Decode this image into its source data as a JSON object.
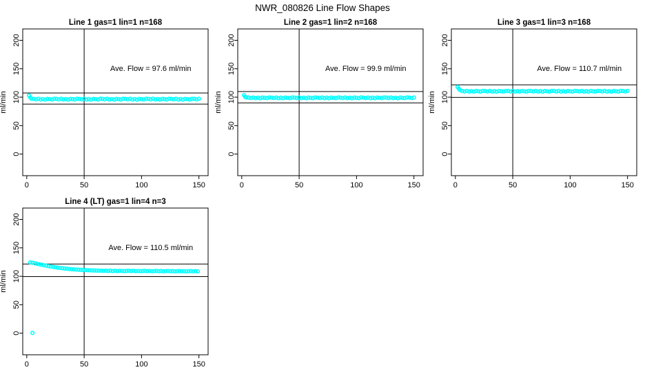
{
  "page": {
    "title": "NWR_080826  Line Flow Shapes"
  },
  "colors": {
    "points": "#00FFFF",
    "lines": "#000000",
    "background": "#FFFFFF"
  },
  "chart_data": [
    {
      "type": "scatter",
      "title": "Line 1 gas=1 lin=1 n=168",
      "annotation": "Ave. Flow =  97.6  ml/min",
      "avg_flow_ml_min": 97.6,
      "ylabel": "ml/min",
      "x_ticks": [
        0,
        50,
        100,
        150
      ],
      "y_ticks": [
        0,
        50,
        100,
        150,
        200
      ],
      "xlim": [
        -3.5,
        158
      ],
      "ylim": [
        -38,
        220
      ],
      "grid": false,
      "ref_lines": {
        "upper": 107.4,
        "lower": 87.8,
        "vertical_x": 50
      },
      "marker": "open-circle",
      "point_color": "#00FFFF",
      "points": [
        [
          2,
          103
        ],
        [
          3,
          99.5
        ],
        [
          4,
          97.5
        ],
        [
          6,
          97
        ],
        [
          8,
          96.2
        ],
        [
          10,
          97.3
        ],
        [
          12,
          95.9
        ],
        [
          14,
          96.7
        ],
        [
          16,
          95.7
        ],
        [
          18,
          96.9
        ],
        [
          20,
          96.5
        ],
        [
          22,
          96
        ],
        [
          24,
          97.2
        ],
        [
          26,
          97
        ],
        [
          28,
          96.2
        ],
        [
          30,
          97.3
        ],
        [
          32,
          95.9
        ],
        [
          34,
          96.7
        ],
        [
          36,
          95.7
        ],
        [
          38,
          96.9
        ],
        [
          40,
          96.5
        ],
        [
          42,
          96
        ],
        [
          44,
          97.2
        ],
        [
          46,
          97
        ],
        [
          48,
          96.2
        ],
        [
          50,
          97.3
        ],
        [
          52,
          95.9
        ],
        [
          54,
          96.7
        ],
        [
          56,
          95.7
        ],
        [
          58,
          96.9
        ],
        [
          60,
          96.5
        ],
        [
          62,
          96
        ],
        [
          64,
          97.2
        ],
        [
          66,
          97
        ],
        [
          68,
          96.2
        ],
        [
          70,
          97.3
        ],
        [
          72,
          95.9
        ],
        [
          74,
          96.7
        ],
        [
          76,
          95.7
        ],
        [
          78,
          96.9
        ],
        [
          80,
          96.5
        ],
        [
          82,
          96
        ],
        [
          84,
          97.2
        ],
        [
          86,
          97
        ],
        [
          88,
          96.2
        ],
        [
          90,
          97.3
        ],
        [
          92,
          95.9
        ],
        [
          94,
          96.7
        ],
        [
          96,
          95.7
        ],
        [
          98,
          96.9
        ],
        [
          100,
          96.5
        ],
        [
          102,
          96
        ],
        [
          104,
          97.2
        ],
        [
          106,
          97
        ],
        [
          108,
          96.2
        ],
        [
          110,
          97.3
        ],
        [
          112,
          95.9
        ],
        [
          114,
          96.7
        ],
        [
          116,
          95.7
        ],
        [
          118,
          96.9
        ],
        [
          120,
          96.5
        ],
        [
          122,
          96
        ],
        [
          124,
          97.2
        ],
        [
          126,
          97
        ],
        [
          128,
          96.2
        ],
        [
          130,
          97.3
        ],
        [
          132,
          95.9
        ],
        [
          134,
          96.7
        ],
        [
          136,
          95.7
        ],
        [
          138,
          96.9
        ],
        [
          140,
          96.5
        ],
        [
          142,
          96
        ],
        [
          144,
          97.2
        ],
        [
          146,
          97
        ],
        [
          148,
          96.2
        ],
        [
          150,
          97.3
        ]
      ]
    },
    {
      "type": "scatter",
      "title": "Line 2 gas=1 lin=2 n=168",
      "annotation": "Ave. Flow =  99.9  ml/min",
      "avg_flow_ml_min": 99.9,
      "ylabel": "ml/min",
      "x_ticks": [
        0,
        50,
        100,
        150
      ],
      "y_ticks": [
        0,
        50,
        100,
        150,
        200
      ],
      "xlim": [
        -3.5,
        158
      ],
      "ylim": [
        -38,
        220
      ],
      "grid": false,
      "ref_lines": {
        "upper": 109.9,
        "lower": 89.9,
        "vertical_x": 50
      },
      "marker": "open-circle",
      "point_color": "#00FFFF",
      "points": [
        [
          2,
          103.5
        ],
        [
          3,
          100.5
        ],
        [
          4,
          99.5
        ],
        [
          6,
          99.2
        ],
        [
          8,
          98.5
        ],
        [
          10,
          99.4
        ],
        [
          12,
          98.3
        ],
        [
          14,
          99
        ],
        [
          16,
          98.2
        ],
        [
          18,
          99.3
        ],
        [
          20,
          98.8
        ],
        [
          22,
          98.4
        ],
        [
          24,
          99.5
        ],
        [
          26,
          99.2
        ],
        [
          28,
          98.5
        ],
        [
          30,
          99.4
        ],
        [
          32,
          98.3
        ],
        [
          34,
          99
        ],
        [
          36,
          98.2
        ],
        [
          38,
          99.3
        ],
        [
          40,
          98.8
        ],
        [
          42,
          98.4
        ],
        [
          44,
          99.5
        ],
        [
          46,
          99.2
        ],
        [
          48,
          98.5
        ],
        [
          50,
          99.4
        ],
        [
          52,
          98.3
        ],
        [
          54,
          99
        ],
        [
          56,
          98.2
        ],
        [
          58,
          99.3
        ],
        [
          60,
          98.8
        ],
        [
          62,
          98.4
        ],
        [
          64,
          99.5
        ],
        [
          66,
          99.2
        ],
        [
          68,
          98.5
        ],
        [
          70,
          99.4
        ],
        [
          72,
          98.3
        ],
        [
          74,
          99
        ],
        [
          76,
          98.2
        ],
        [
          78,
          99.3
        ],
        [
          80,
          98.8
        ],
        [
          82,
          98.4
        ],
        [
          84,
          99.5
        ],
        [
          86,
          99.2
        ],
        [
          88,
          98.5
        ],
        [
          90,
          99.4
        ],
        [
          92,
          98.3
        ],
        [
          94,
          99
        ],
        [
          96,
          98.2
        ],
        [
          98,
          99.3
        ],
        [
          100,
          98.8
        ],
        [
          102,
          98.4
        ],
        [
          104,
          99.5
        ],
        [
          106,
          99.2
        ],
        [
          108,
          98.5
        ],
        [
          110,
          99.4
        ],
        [
          112,
          98.3
        ],
        [
          114,
          99
        ],
        [
          116,
          98.2
        ],
        [
          118,
          99.3
        ],
        [
          120,
          98.8
        ],
        [
          122,
          98.4
        ],
        [
          124,
          99.5
        ],
        [
          126,
          99.2
        ],
        [
          128,
          98.5
        ],
        [
          130,
          99.4
        ],
        [
          132,
          98.3
        ],
        [
          134,
          99
        ],
        [
          136,
          98.2
        ],
        [
          138,
          99.3
        ],
        [
          140,
          98.8
        ],
        [
          142,
          98.4
        ],
        [
          144,
          99.5
        ],
        [
          146,
          99.2
        ],
        [
          148,
          98.5
        ],
        [
          150,
          99.4
        ]
      ]
    },
    {
      "type": "scatter",
      "title": "Line 3 gas=1 lin=3 n=168",
      "annotation": "Ave. Flow =  110.7  ml/min",
      "avg_flow_ml_min": 110.7,
      "ylabel": "ml/min",
      "x_ticks": [
        0,
        50,
        100,
        150
      ],
      "y_ticks": [
        0,
        50,
        100,
        150,
        200
      ],
      "xlim": [
        -3.5,
        158
      ],
      "ylim": [
        -38,
        220
      ],
      "grid": false,
      "ref_lines": {
        "upper": 121.8,
        "lower": 99.6,
        "vertical_x": 50
      },
      "marker": "open-circle",
      "point_color": "#00FFFF",
      "points": [
        [
          2,
          118
        ],
        [
          3,
          114.8
        ],
        [
          4,
          112.5
        ],
        [
          6,
          110.8
        ],
        [
          8,
          110
        ],
        [
          10,
          111
        ],
        [
          12,
          109.8
        ],
        [
          14,
          110.5
        ],
        [
          16,
          109.7
        ],
        [
          18,
          110.9
        ],
        [
          20,
          110.3
        ],
        [
          22,
          109.9
        ],
        [
          24,
          111
        ],
        [
          26,
          110.8
        ],
        [
          28,
          110
        ],
        [
          30,
          111
        ],
        [
          32,
          109.8
        ],
        [
          34,
          110.5
        ],
        [
          36,
          109.7
        ],
        [
          38,
          110.9
        ],
        [
          40,
          110.3
        ],
        [
          42,
          109.9
        ],
        [
          44,
          111
        ],
        [
          46,
          110.8
        ],
        [
          48,
          110
        ],
        [
          50,
          111
        ],
        [
          52,
          109.8
        ],
        [
          54,
          110.5
        ],
        [
          56,
          109.7
        ],
        [
          58,
          110.9
        ],
        [
          60,
          110.3
        ],
        [
          62,
          109.9
        ],
        [
          64,
          111
        ],
        [
          66,
          110.8
        ],
        [
          68,
          110
        ],
        [
          70,
          111
        ],
        [
          72,
          109.8
        ],
        [
          74,
          110.5
        ],
        [
          76,
          109.7
        ],
        [
          78,
          110.9
        ],
        [
          80,
          110.3
        ],
        [
          82,
          109.9
        ],
        [
          84,
          111
        ],
        [
          86,
          110.8
        ],
        [
          88,
          110
        ],
        [
          90,
          111
        ],
        [
          92,
          109.8
        ],
        [
          94,
          110.5
        ],
        [
          96,
          109.7
        ],
        [
          98,
          110.9
        ],
        [
          100,
          110.3
        ],
        [
          102,
          109.9
        ],
        [
          104,
          111
        ],
        [
          106,
          110.8
        ],
        [
          108,
          110
        ],
        [
          110,
          111
        ],
        [
          112,
          109.8
        ],
        [
          114,
          110.5
        ],
        [
          116,
          109.7
        ],
        [
          118,
          110.9
        ],
        [
          120,
          110.3
        ],
        [
          122,
          109.9
        ],
        [
          124,
          111
        ],
        [
          126,
          110.8
        ],
        [
          128,
          110
        ],
        [
          130,
          111
        ],
        [
          132,
          109.8
        ],
        [
          134,
          110.5
        ],
        [
          136,
          109.7
        ],
        [
          138,
          110.9
        ],
        [
          140,
          110.3
        ],
        [
          142,
          109.9
        ],
        [
          144,
          111
        ],
        [
          146,
          110.8
        ],
        [
          148,
          110
        ],
        [
          150,
          111
        ]
      ]
    },
    {
      "type": "scatter",
      "title": "Line 4 (LT) gas=1 lin=4 n=3",
      "annotation": "Ave. Flow =  110.5  ml/min",
      "avg_flow_ml_min": 110.5,
      "ylabel": "ml/min",
      "x_ticks": [
        0,
        50,
        100,
        150
      ],
      "y_ticks": [
        0,
        50,
        100,
        150,
        200
      ],
      "xlim": [
        -3.5,
        158
      ],
      "ylim": [
        -38,
        220
      ],
      "grid": false,
      "ref_lines": {
        "upper": 121.6,
        "lower": 99.5,
        "vertical_x": 50
      },
      "marker": "open-circle",
      "point_color": "#00FFFF",
      "points": [
        [
          5,
          0.5
        ],
        [
          3,
          124.5
        ],
        [
          5,
          123.8
        ],
        [
          7,
          123
        ],
        [
          9,
          122
        ],
        [
          11,
          121
        ],
        [
          13,
          120.2
        ],
        [
          15,
          119.4
        ],
        [
          17,
          118.6
        ],
        [
          19,
          117.8
        ],
        [
          21,
          117.1
        ],
        [
          23,
          116.4
        ],
        [
          25,
          115.8
        ],
        [
          27,
          115.2
        ],
        [
          29,
          114.7
        ],
        [
          31,
          114.2
        ],
        [
          33,
          113.7
        ],
        [
          35,
          113.3
        ],
        [
          37,
          112.9
        ],
        [
          39,
          112.5
        ],
        [
          41,
          112.2
        ],
        [
          43,
          111.9
        ],
        [
          45,
          111.6
        ],
        [
          47,
          111.3
        ],
        [
          49,
          111.1
        ],
        [
          51,
          110.9
        ],
        [
          53,
          110.7
        ],
        [
          55,
          110.5
        ],
        [
          57,
          110.3
        ],
        [
          59,
          110.2
        ],
        [
          61,
          110
        ],
        [
          63,
          109.9
        ],
        [
          65,
          109.8
        ],
        [
          67,
          109.6
        ],
        [
          69,
          109.8
        ],
        [
          71,
          109.3
        ],
        [
          73,
          109.9
        ],
        [
          75,
          109.2
        ],
        [
          77,
          109.6
        ],
        [
          79,
          109.1
        ],
        [
          81,
          109.7
        ],
        [
          83,
          109.4
        ],
        [
          85,
          109
        ],
        [
          87,
          109.5
        ],
        [
          89,
          109.8
        ],
        [
          91,
          109.2
        ],
        [
          93,
          109.6
        ],
        [
          95,
          109
        ],
        [
          97,
          109.4
        ],
        [
          99,
          108.9
        ],
        [
          101,
          109.3
        ],
        [
          103,
          109.6
        ],
        [
          105,
          109
        ],
        [
          107,
          109.4
        ],
        [
          109,
          108.8
        ],
        [
          111,
          109.2
        ],
        [
          113,
          109.5
        ],
        [
          115,
          108.9
        ],
        [
          117,
          109.3
        ],
        [
          119,
          108.7
        ],
        [
          121,
          109.1
        ],
        [
          123,
          109.4
        ],
        [
          125,
          108.8
        ],
        [
          127,
          109.2
        ],
        [
          129,
          108.6
        ],
        [
          131,
          109
        ],
        [
          133,
          109.3
        ],
        [
          135,
          108.7
        ],
        [
          137,
          109.1
        ],
        [
          139,
          108.5
        ],
        [
          141,
          108.9
        ],
        [
          143,
          109.2
        ],
        [
          145,
          108.6
        ],
        [
          147,
          109
        ],
        [
          149,
          108.8
        ]
      ]
    }
  ]
}
